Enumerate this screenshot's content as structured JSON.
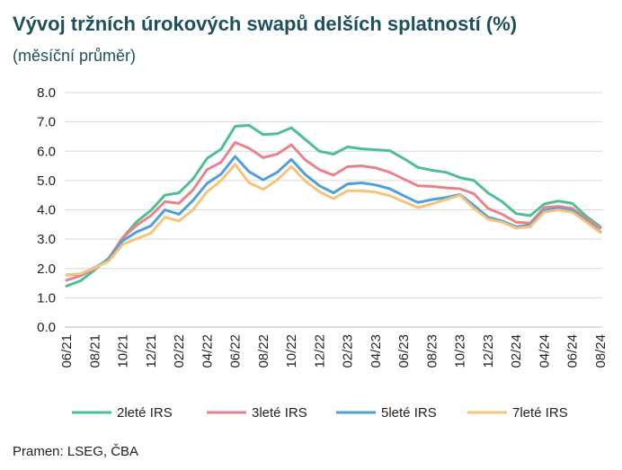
{
  "title": "Vývoj tržních úrokových swapů delších splatností (%)",
  "subtitle": "(měsíční průměr)",
  "source": "Pramen: LSEG, ČBA",
  "chart_data": {
    "type": "line",
    "title": "Vývoj tržních úrokových swapů delších splatností (%)",
    "subtitle": "(měsíční průměr)",
    "xlabel": "",
    "ylabel": "",
    "ylim": [
      0,
      8
    ],
    "yticks": [
      "0.0",
      "1.0",
      "2.0",
      "3.0",
      "4.0",
      "5.0",
      "6.0",
      "7.0",
      "8.0"
    ],
    "grid": "horizontal",
    "legend_position": "bottom",
    "x": [
      "06/21",
      "07/21",
      "08/21",
      "09/21",
      "10/21",
      "11/21",
      "12/21",
      "01/22",
      "02/22",
      "03/22",
      "04/22",
      "05/22",
      "06/22",
      "07/22",
      "08/22",
      "09/22",
      "10/22",
      "11/22",
      "12/22",
      "01/23",
      "02/23",
      "03/23",
      "04/23",
      "05/23",
      "06/23",
      "07/23",
      "08/23",
      "09/23",
      "10/23",
      "11/23",
      "12/23",
      "01/24",
      "02/24",
      "03/24",
      "04/24",
      "05/24",
      "06/24",
      "07/24",
      "08/24"
    ],
    "xtick_labels": [
      "06/21",
      "08/21",
      "10/21",
      "12/21",
      "02/22",
      "04/22",
      "06/22",
      "08/22",
      "10/22",
      "12/22",
      "02/23",
      "04/23",
      "06/23",
      "08/23",
      "10/23",
      "12/23",
      "02/24",
      "04/24",
      "06/24",
      "08/24"
    ],
    "series": [
      {
        "name": "2leté IRS",
        "color": "#4dbf91",
        "values": [
          1.4,
          1.58,
          1.95,
          2.35,
          3.05,
          3.6,
          3.98,
          4.5,
          4.58,
          5.05,
          5.75,
          6.07,
          6.85,
          6.88,
          6.57,
          6.6,
          6.8,
          6.4,
          6.0,
          5.9,
          6.15,
          6.08,
          6.05,
          6.02,
          5.75,
          5.45,
          5.35,
          5.28,
          5.1,
          5.0,
          4.58,
          4.28,
          3.87,
          3.8,
          4.2,
          4.3,
          4.22,
          3.78,
          3.42
        ]
      },
      {
        "name": "3leté IRS",
        "color": "#e8838c",
        "values": [
          1.6,
          1.75,
          2.0,
          2.32,
          3.05,
          3.48,
          3.8,
          4.28,
          4.22,
          4.68,
          5.37,
          5.62,
          6.3,
          6.1,
          5.78,
          5.9,
          6.22,
          5.7,
          5.37,
          5.18,
          5.47,
          5.5,
          5.43,
          5.28,
          5.05,
          4.82,
          4.8,
          4.75,
          4.72,
          4.55,
          4.05,
          3.85,
          3.58,
          3.55,
          4.08,
          4.12,
          4.05,
          3.7,
          3.38
        ]
      },
      {
        "name": "5leté IRS",
        "color": "#4f9fdb",
        "values": [
          1.78,
          1.8,
          2.03,
          2.3,
          2.95,
          3.25,
          3.45,
          4.0,
          3.85,
          4.32,
          4.9,
          5.22,
          5.82,
          5.3,
          5.02,
          5.28,
          5.72,
          5.2,
          4.82,
          4.58,
          4.88,
          4.92,
          4.85,
          4.72,
          4.48,
          4.25,
          4.35,
          4.42,
          4.52,
          4.15,
          3.75,
          3.62,
          3.42,
          3.48,
          3.98,
          4.05,
          3.98,
          3.62,
          3.25
        ]
      },
      {
        "name": "7leté IRS",
        "color": "#f5c47a",
        "values": [
          1.78,
          1.82,
          2.02,
          2.25,
          2.82,
          3.02,
          3.2,
          3.75,
          3.62,
          4.0,
          4.62,
          5.0,
          5.55,
          4.92,
          4.7,
          5.02,
          5.48,
          4.98,
          4.62,
          4.38,
          4.65,
          4.65,
          4.6,
          4.48,
          4.28,
          4.08,
          4.2,
          4.35,
          4.5,
          4.05,
          3.68,
          3.58,
          3.38,
          3.42,
          3.92,
          4.0,
          3.92,
          3.58,
          3.22
        ]
      }
    ]
  }
}
